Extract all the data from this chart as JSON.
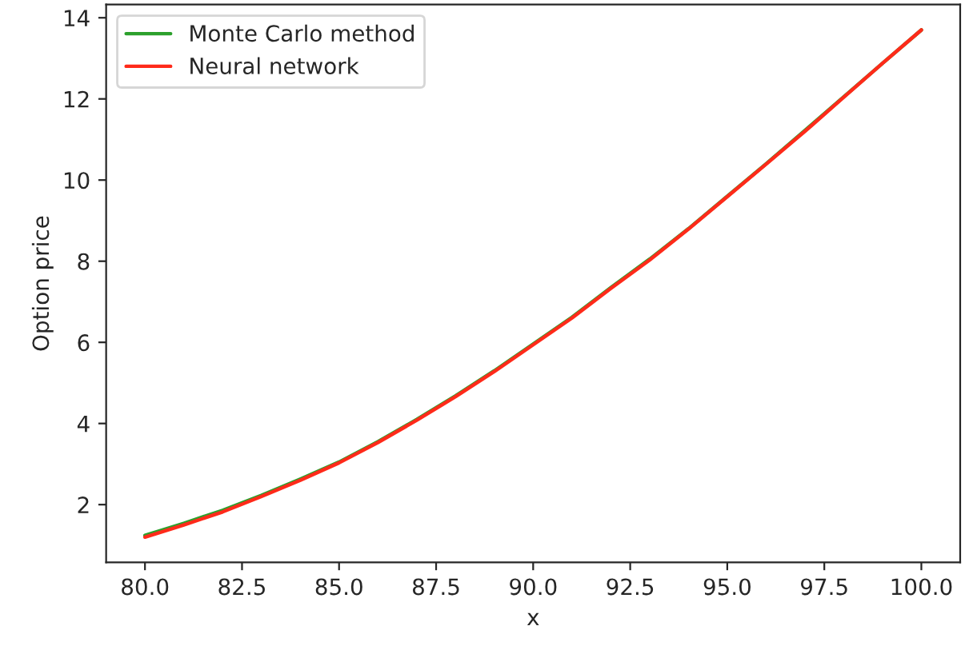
{
  "chart_data": {
    "type": "line",
    "xlabel": "x",
    "ylabel": "Option price",
    "x": [
      80,
      81,
      82,
      83,
      84,
      85,
      86,
      87,
      88,
      89,
      90,
      91,
      92,
      93,
      94,
      95,
      96,
      97,
      98,
      99,
      100
    ],
    "series": [
      {
        "name": "Monte Carlo method",
        "color": "#2ca02c",
        "values": [
          1.24,
          1.54,
          1.86,
          2.23,
          2.63,
          3.05,
          3.55,
          4.1,
          4.68,
          5.3,
          5.96,
          6.62,
          7.35,
          8.05,
          8.8,
          9.6,
          10.4,
          11.22,
          12.05,
          12.88,
          13.7
        ]
      },
      {
        "name": "Neural network",
        "color": "#ff2a1a",
        "values": [
          1.2,
          1.5,
          1.82,
          2.2,
          2.6,
          3.03,
          3.53,
          4.08,
          4.66,
          5.28,
          5.94,
          6.6,
          7.33,
          8.03,
          8.79,
          9.59,
          10.39,
          11.2,
          12.04,
          12.88,
          13.7
        ]
      }
    ],
    "xlim": [
      79,
      101
    ],
    "ylim": [
      0.575,
      14.325
    ],
    "xticks": [
      {
        "value": 80,
        "label": "80.0"
      },
      {
        "value": 82.5,
        "label": "82.5"
      },
      {
        "value": 85,
        "label": "85.0"
      },
      {
        "value": 87.5,
        "label": "87.5"
      },
      {
        "value": 90,
        "label": "90.0"
      },
      {
        "value": 92.5,
        "label": "92.5"
      },
      {
        "value": 95,
        "label": "95.0"
      },
      {
        "value": 97.5,
        "label": "97.5"
      },
      {
        "value": 100,
        "label": "100.0"
      }
    ],
    "yticks": [
      2,
      4,
      6,
      8,
      10,
      12,
      14
    ],
    "legend": "top left",
    "grid": false
  }
}
